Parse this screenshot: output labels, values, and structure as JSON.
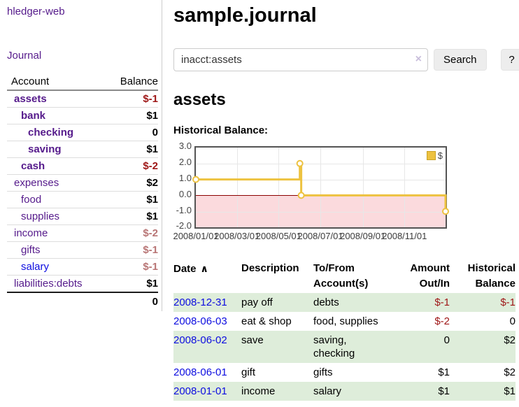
{
  "app": {
    "brand": "hledger-web"
  },
  "colors": {
    "purple": "#551a8b",
    "blue": "#0d0de0",
    "negative": "#9e1616",
    "negative_muted": "#b87575",
    "stripe_green": "#deedda",
    "chart_gold": "#edc240",
    "chart_pink": "#fbdadd",
    "zero_line_red": "#8b0000"
  },
  "sidebar": {
    "nav": {
      "journal": "Journal"
    },
    "accounts": {
      "account_header": "Account",
      "balance_header": "Balance",
      "rows": [
        {
          "name": "assets",
          "balance": "$-1",
          "depth": 1,
          "bold": true,
          "balance_class": "neg"
        },
        {
          "name": "bank",
          "balance": "$1",
          "depth": 2,
          "bold": true,
          "balance_class": ""
        },
        {
          "name": "checking",
          "balance": "0",
          "depth": 3,
          "bold": true,
          "balance_class": ""
        },
        {
          "name": "saving",
          "balance": "$1",
          "depth": 3,
          "bold": true,
          "balance_class": ""
        },
        {
          "name": "cash",
          "balance": "$-2",
          "depth": 2,
          "bold": true,
          "balance_class": "neg"
        },
        {
          "name": "expenses",
          "balance": "$2",
          "depth": 1,
          "bold": false,
          "balance_class": ""
        },
        {
          "name": "food",
          "balance": "$1",
          "depth": 2,
          "bold": false,
          "balance_class": ""
        },
        {
          "name": "supplies",
          "balance": "$1",
          "depth": 2,
          "bold": false,
          "balance_class": ""
        },
        {
          "name": "income",
          "balance": "$-2",
          "depth": 1,
          "bold": false,
          "balance_class": "negmuted"
        },
        {
          "name": "gifts",
          "balance": "$-1",
          "depth": 2,
          "bold": false,
          "balance_class": "negmuted"
        },
        {
          "name": "salary",
          "balance": "$-1",
          "depth": 2,
          "bold": false,
          "balance_class": "negmuted",
          "blue": true
        },
        {
          "name": "liabilities:debts",
          "balance": "$1",
          "depth": 1,
          "bold": false,
          "balance_class": ""
        }
      ],
      "total": "0"
    }
  },
  "header": {
    "title": "sample.journal"
  },
  "search": {
    "value": "inacct:assets",
    "clear_icon": "×",
    "button_label": "Search",
    "help_label": "?"
  },
  "account_page": {
    "heading": "assets",
    "chart_label": "Historical Balance:"
  },
  "chart_data": {
    "type": "line",
    "step": true,
    "title": "Historical Balance",
    "series": [
      {
        "name": "$",
        "color": "#edc240",
        "points": [
          {
            "x": "2008-01-01",
            "y": 1
          },
          {
            "x": "2008-06-01",
            "y": 2
          },
          {
            "x": "2008-06-03",
            "y": 0
          },
          {
            "x": "2008-12-31",
            "y": -1
          }
        ]
      }
    ],
    "xlim": [
      "2008-01-01",
      "2008-12-31"
    ],
    "ylim": [
      -2,
      3
    ],
    "x_ticks": [
      {
        "x": "2008-01-01",
        "label": "2008/01/01"
      },
      {
        "x": "2008-03-01",
        "label": "2008/03/01"
      },
      {
        "x": "2008-05-01",
        "label": "2008/05/01"
      },
      {
        "x": "2008-07-01",
        "label": "2008/07/01"
      },
      {
        "x": "2008-09-01",
        "label": "2008/09/01"
      },
      {
        "x": "2008-11-01",
        "label": "2008/11/01"
      }
    ],
    "y_ticks": [
      {
        "y": 3,
        "label": "3.0"
      },
      {
        "y": 2,
        "label": "2.0"
      },
      {
        "y": 1,
        "label": "1.0"
      },
      {
        "y": 0,
        "label": "0.0"
      },
      {
        "y": -1,
        "label": "-1.0"
      },
      {
        "y": -2,
        "label": "-2.0"
      }
    ],
    "legend": {
      "label": "$",
      "position": "top-right"
    },
    "grid": true,
    "negative_region_shaded": true
  },
  "register": {
    "columns": {
      "date": "Date",
      "description": "Description",
      "tofrom": "To/From Account(s)",
      "amount": "Amount Out/In",
      "balance": "Historical Balance"
    },
    "sort_icon": "∧",
    "rows": [
      {
        "date": "2008-12-31",
        "description": "pay off",
        "accounts": [
          "debts"
        ],
        "amount": "$-1",
        "balance": "$-1",
        "amount_neg": true,
        "balance_neg": true,
        "striped": true
      },
      {
        "date": "2008-06-03",
        "description": "eat & shop",
        "accounts": [
          "food",
          "supplies"
        ],
        "amount": "$-2",
        "balance": "0",
        "amount_neg": true,
        "balance_neg": false,
        "striped": false
      },
      {
        "date": "2008-06-02",
        "description": "save",
        "accounts": [
          "saving",
          "checking"
        ],
        "amount": "0",
        "balance": "$2",
        "amount_neg": false,
        "balance_neg": false,
        "striped": true
      },
      {
        "date": "2008-06-01",
        "description": "gift",
        "accounts": [
          "gifts"
        ],
        "amount": "$1",
        "balance": "$2",
        "amount_neg": false,
        "balance_neg": false,
        "striped": false
      },
      {
        "date": "2008-01-01",
        "description": "income",
        "accounts": [
          "salary"
        ],
        "amount": "$1",
        "balance": "$1",
        "amount_neg": false,
        "balance_neg": false,
        "striped": true
      }
    ]
  }
}
